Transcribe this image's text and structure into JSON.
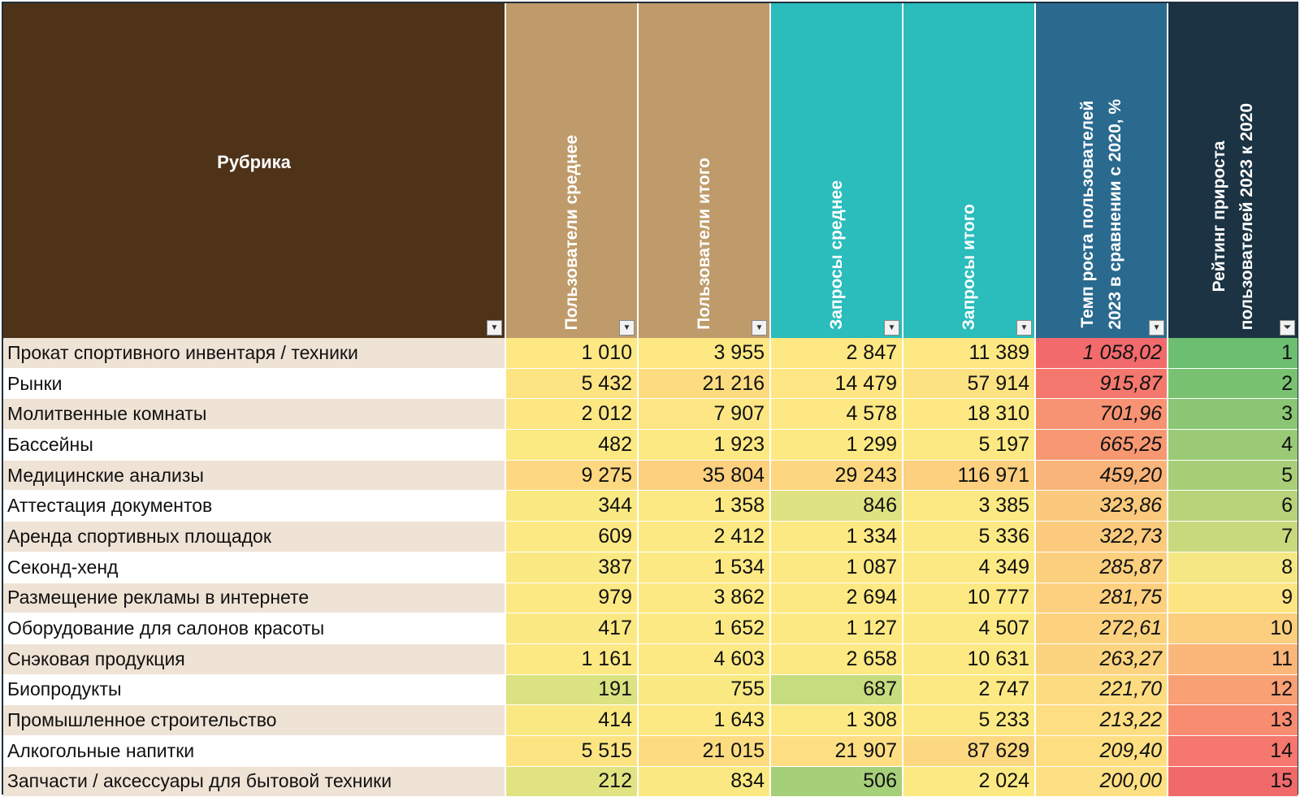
{
  "headers": {
    "rubric": "Рубрика",
    "users_avg": "Пользователи среднее",
    "users_total": "Пользователи итого",
    "req_avg": "Запросы среднее",
    "req_total": "Запросы итого",
    "growth_line1": "Темп роста пользователей",
    "growth_line2": "2023 в сравнении с 2020, %",
    "rank_line1": "Рейтинг прироста",
    "rank_line2": "пользователей 2023 к 2020"
  },
  "filter_icon": "dropdown-arrow-icon",
  "sort_icon": "filter-sort-icon",
  "colors": {
    "header_rubric": "#4e3318",
    "header_users": "#bf9b6b",
    "header_requests": "#2bbcbc",
    "header_growth": "#2a6a8f",
    "header_rank": "#1b3343"
  },
  "rows": [
    {
      "name": "Прокат спортивного инвентаря / техники",
      "users_avg": "1 010",
      "users_total": "3 955",
      "req_avg": "2 847",
      "req_total": "11 389",
      "growth": "1 058,02",
      "rank": "1",
      "c": [
        "#fde883",
        "#fde883",
        "#fde883",
        "#fde883",
        "#f26a6c",
        "#6cbe70"
      ]
    },
    {
      "name": "Рынки",
      "users_avg": "5 432",
      "users_total": "21 216",
      "req_avg": "14 479",
      "req_total": "57 914",
      "growth": "915,87",
      "rank": "2",
      "c": [
        "#fde483",
        "#fddc81",
        "#fde683",
        "#fde283",
        "#f4786e",
        "#78c272"
      ]
    },
    {
      "name": "Молитвенные комнаты",
      "users_avg": "2 012",
      "users_total": "7 907",
      "req_avg": "4 578",
      "req_total": "18 310",
      "growth": "701,96",
      "rank": "3",
      "c": [
        "#fde783",
        "#fde683",
        "#fde883",
        "#fde883",
        "#f79272",
        "#8ac674"
      ]
    },
    {
      "name": "Бассейны",
      "users_avg": "482",
      "users_total": "1 923",
      "req_avg": "1 299",
      "req_total": "5 197",
      "growth": "665,25",
      "rank": "4",
      "c": [
        "#fbe982",
        "#fde983",
        "#fde983",
        "#fde983",
        "#f89873",
        "#9aca76"
      ]
    },
    {
      "name": "Медицинские анализы",
      "users_avg": "9 275",
      "users_total": "35 804",
      "req_avg": "29 243",
      "req_total": "116 971",
      "growth": "459,20",
      "rank": "5",
      "c": [
        "#fdd880",
        "#fcd07f",
        "#fcd77f",
        "#fcd07f",
        "#f9b479",
        "#a8ce78"
      ]
    },
    {
      "name": "Аттестация документов",
      "users_avg": "344",
      "users_total": "1 358",
      "req_avg": "846",
      "req_total": "3 385",
      "growth": "323,86",
      "rank": "6",
      "c": [
        "#f8e982",
        "#fde983",
        "#dfe282",
        "#fde983",
        "#fbc97d",
        "#b8d37a"
      ]
    },
    {
      "name": "Аренда спортивных площадок",
      "users_avg": "609",
      "users_total": "2 412",
      "req_avg": "1 334",
      "req_total": "5 336",
      "growth": "322,73",
      "rank": "7",
      "c": [
        "#fde983",
        "#fde983",
        "#fde983",
        "#fde983",
        "#fbca7d",
        "#c8d87c"
      ]
    },
    {
      "name": "Секонд-хенд",
      "users_avg": "387",
      "users_total": "1 534",
      "req_avg": "1 087",
      "req_total": "4 349",
      "growth": "285,87",
      "rank": "8",
      "c": [
        "#fae982",
        "#fde983",
        "#fde983",
        "#fde983",
        "#fccf7e",
        "#f5e783"
      ]
    },
    {
      "name": "Размещение рекламы в интернете",
      "users_avg": "979",
      "users_total": "3 862",
      "req_avg": "2 694",
      "req_total": "10 777",
      "growth": "281,75",
      "rank": "9",
      "c": [
        "#fde983",
        "#fde983",
        "#fde983",
        "#fde983",
        "#fcd07e",
        "#fde583"
      ]
    },
    {
      "name": "Оборудование для салонов красоты",
      "users_avg": "417",
      "users_total": "1 652",
      "req_avg": "1 127",
      "req_total": "4 507",
      "growth": "272,61",
      "rank": "10",
      "c": [
        "#fae982",
        "#fde983",
        "#fde983",
        "#fde983",
        "#fcd27f",
        "#fccf7e"
      ]
    },
    {
      "name": "Снэковая продукция",
      "users_avg": "1 161",
      "users_total": "4 603",
      "req_avg": "2 658",
      "req_total": "10 631",
      "growth": "263,27",
      "rank": "11",
      "c": [
        "#fde983",
        "#fde983",
        "#fde983",
        "#fde983",
        "#fcd37f",
        "#fbb67a"
      ]
    },
    {
      "name": "Биопродукты",
      "users_avg": "191",
      "users_total": "755",
      "req_avg": "687",
      "req_total": "2 747",
      "growth": "221,70",
      "rank": "12",
      "c": [
        "#dbe282",
        "#f8e982",
        "#c6dc7f",
        "#fde983",
        "#fddc81",
        "#f9a075"
      ]
    },
    {
      "name": "Промышленное строительство",
      "users_avg": "414",
      "users_total": "1 643",
      "req_avg": "1 308",
      "req_total": "5 233",
      "growth": "213,22",
      "rank": "13",
      "c": [
        "#fae982",
        "#fde983",
        "#fde983",
        "#fde983",
        "#fdde82",
        "#f78c71"
      ]
    },
    {
      "name": "Алкогольные напитки",
      "users_avg": "5 515",
      "users_total": "21 015",
      "req_avg": "21 907",
      "req_total": "87 629",
      "growth": "209,40",
      "rank": "14",
      "c": [
        "#fde483",
        "#fddc81",
        "#fdde82",
        "#fcd880",
        "#fddf82",
        "#f5776e"
      ]
    },
    {
      "name": "Запчасти / аксессуары для бытовой техники",
      "users_avg": "212",
      "users_total": "834",
      "req_avg": "506",
      "req_total": "2 024",
      "growth": "200,00",
      "rank": "15",
      "c": [
        "#e1e382",
        "#fae982",
        "#a6cf7a",
        "#fde983",
        "#fde083",
        "#f16a6a"
      ]
    }
  ]
}
